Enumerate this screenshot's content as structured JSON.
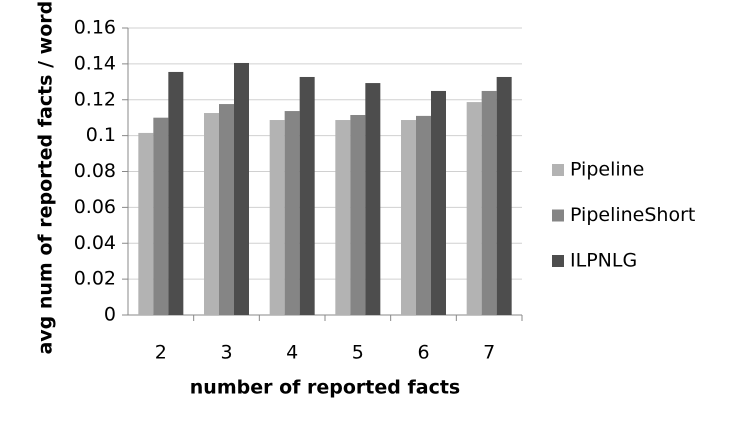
{
  "chart_data": {
    "type": "bar",
    "x_label": "number of reported facts",
    "y_label": "avg num of reported facts / words",
    "categories": [
      "2",
      "3",
      "4",
      "5",
      "6",
      "7"
    ],
    "series": [
      {
        "name": "Pipeline",
        "color": "#b3b3b3",
        "values": [
          0.1015,
          0.1126,
          0.1087,
          0.1087,
          0.1087,
          0.1187
        ]
      },
      {
        "name": "PipelineShort",
        "color": "#858585",
        "values": [
          0.11,
          0.1176,
          0.1137,
          0.1115,
          0.111,
          0.1249
        ]
      },
      {
        "name": "ILPNLG",
        "color": "#4d4d4d",
        "values": [
          0.1355,
          0.1405,
          0.1327,
          0.1293,
          0.1249,
          0.1327
        ]
      }
    ],
    "ylim": [
      0,
      0.16
    ],
    "yticks": [
      0,
      0.02,
      0.04,
      0.06,
      0.08,
      0.1,
      0.12,
      0.14,
      0.16
    ],
    "grid": true,
    "legend": "right"
  }
}
